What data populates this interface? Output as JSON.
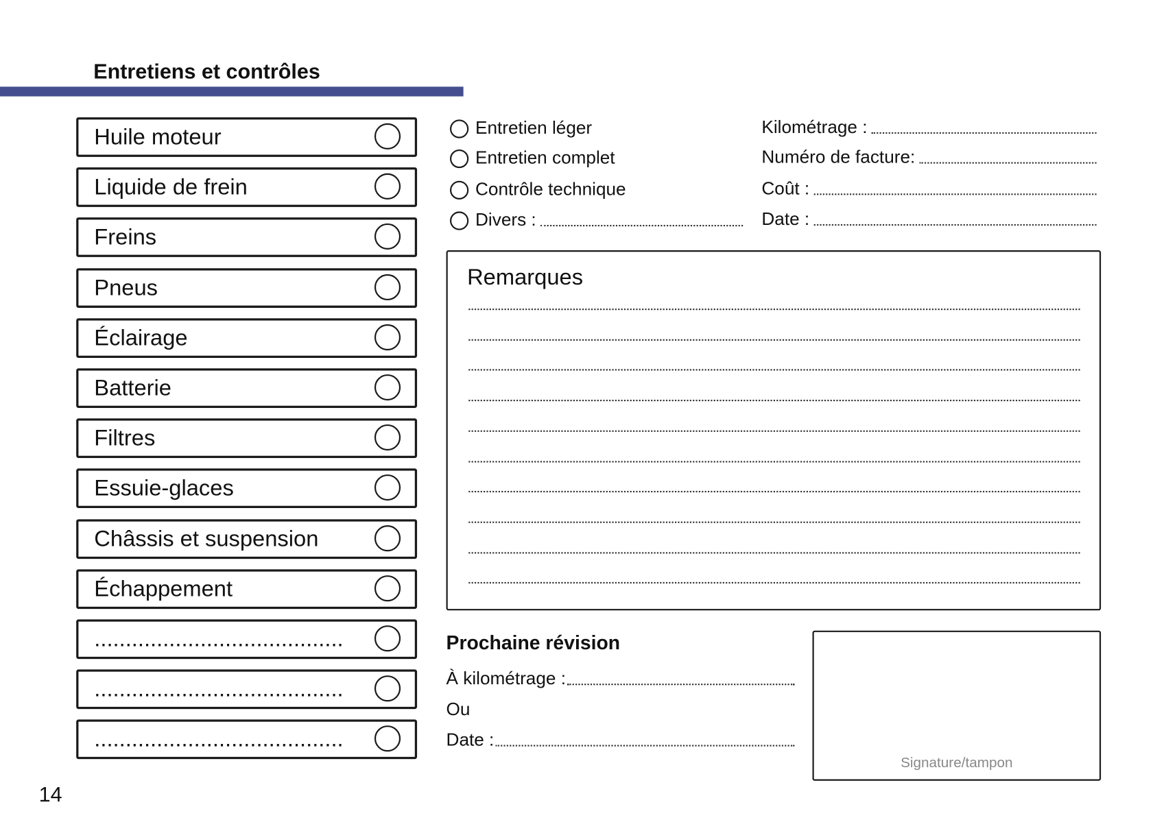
{
  "header": {
    "title": "Entretiens et contrôles",
    "accent_color": "#454e8f"
  },
  "checklist": [
    "Huile moteur",
    "Liquide de frein",
    "Freins",
    "Pneus",
    "Éclairage",
    "Batterie",
    "Filtres",
    "Essuie-glaces",
    "Châssis et suspension",
    "Échappement",
    "........................................",
    "........................................",
    "........................................"
  ],
  "service_types": [
    "Entretien léger",
    "Entretien complet",
    "Contrôle technique",
    "Divers :"
  ],
  "fields": [
    "Kilométrage :",
    "Numéro de facture:",
    "Coût :",
    "Date :"
  ],
  "remarks": {
    "title": "Remarques"
  },
  "next_service": {
    "title": "Prochaine révision",
    "mileage": "À kilométrage :",
    "or": "Ou",
    "date": "Date :"
  },
  "signature": {
    "label": "Signature/tampon"
  },
  "page_number": "14"
}
